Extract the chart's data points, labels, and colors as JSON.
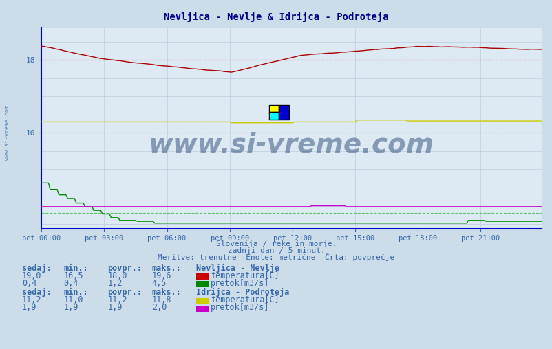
{
  "title": "Nevljica - Nevlje & Idrijca - Podroteja",
  "bg_color": "#ccdce8",
  "plot_bg_color": "#ddeaf4",
  "grid_color_v": "#bbbbcc",
  "grid_color_h": "#ccccdd",
  "title_color": "#000088",
  "axis_color": "#0000cc",
  "label_color": "#3366aa",
  "watermark": "www.si-vreme.com",
  "subtitle1": "Slovenija / reke in morje.",
  "subtitle2": "zadnji dan / 5 minut.",
  "subtitle3": "Meritve: trenutne  Enote: metrične  Črta: povprečje",
  "xlim": [
    0,
    287
  ],
  "ylim": [
    -0.5,
    21.5
  ],
  "yticks": [
    10,
    18
  ],
  "xtick_labels": [
    "pet 00:00",
    "pet 03:00",
    "pet 06:00",
    "pet 09:00",
    "pet 12:00",
    "pet 15:00",
    "pet 18:00",
    "pet 21:00"
  ],
  "xtick_positions": [
    0,
    36,
    72,
    108,
    144,
    180,
    216,
    252
  ],
  "stats": {
    "nevljica_temp": {
      "sedaj": "19,0",
      "min": "16,5",
      "povpr": "18,0",
      "maks": "19,6"
    },
    "nevljica_pretok": {
      "sedaj": "0,4",
      "min": "0,4",
      "povpr": "1,2",
      "maks": "4,5"
    },
    "idrijca_temp": {
      "sedaj": "11,2",
      "min": "11,0",
      "povpr": "11,2",
      "maks": "11,8"
    },
    "idrijca_pretok": {
      "sedaj": "1,9",
      "min": "1,9",
      "povpr": "1,9",
      "maks": "2,0"
    }
  },
  "n_points": 288
}
